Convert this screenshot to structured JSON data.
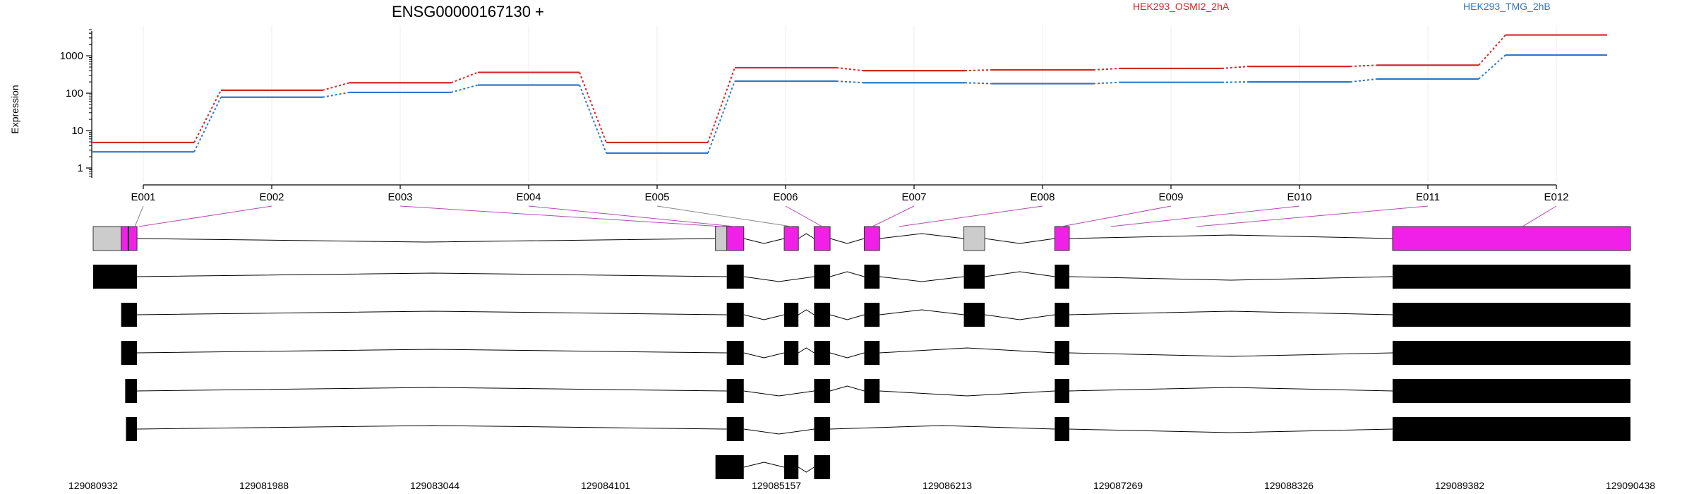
{
  "chart_data": {
    "type": "line",
    "title": "ENSG00000167130 +",
    "ylabel": "Expression",
    "yscale": "log",
    "ylim": [
      0.5,
      5000
    ],
    "y_ticks": [
      1,
      10,
      100,
      1000
    ],
    "y_tick_labels": [
      "1",
      "10",
      "100",
      "1000"
    ],
    "categories": [
      "E001",
      "E002",
      "E003",
      "E004",
      "E005",
      "E006",
      "E007",
      "E008",
      "E009",
      "E010",
      "E011",
      "E012"
    ],
    "series": [
      {
        "name": "HEK293_OSMI2_2hA",
        "color": "#d62728",
        "values": [
          4.8,
          120,
          190,
          360,
          4.8,
          480,
          400,
          420,
          460,
          520,
          560,
          3600
        ]
      },
      {
        "name": "HEK293_TMG_2hB",
        "color": "#2f79c7",
        "values": [
          2.7,
          78,
          105,
          165,
          2.5,
          210,
          190,
          180,
          195,
          200,
          240,
          1050
        ]
      }
    ],
    "grid": true,
    "legend": "top"
  },
  "gene_model": {
    "coord_start": 129080932,
    "coord_end": 129090438,
    "coordinate_labels": [
      "129080932",
      "129081988",
      "129083044",
      "129084101",
      "129085157",
      "129086213",
      "129087269",
      "129088326",
      "129089382",
      "129090438"
    ],
    "colors": {
      "exon_active": "#f020e8",
      "exon_other": "#cccccc",
      "transcript_exon": "#000000",
      "connector": "#b44ab4",
      "connector_grey": "#888888"
    },
    "summary_blocks": [
      {
        "start": 129080932,
        "end": 129081105,
        "color": "grey"
      },
      {
        "start": 129081105,
        "end": 129081203,
        "color": "magenta"
      },
      {
        "start": 129084780,
        "end": 129084850,
        "color": "grey"
      },
      {
        "start": 129084850,
        "end": 129084955,
        "color": "magenta"
      },
      {
        "start": 129085205,
        "end": 129085293,
        "color": "magenta"
      },
      {
        "start": 129085390,
        "end": 129085489,
        "color": "magenta"
      },
      {
        "start": 129085700,
        "end": 129085795,
        "color": "magenta"
      },
      {
        "start": 129086316,
        "end": 129086445,
        "color": "grey"
      },
      {
        "start": 129086878,
        "end": 129086968,
        "color": "magenta"
      },
      {
        "start": 129088967,
        "end": 129090438,
        "color": "magenta"
      }
    ],
    "transcripts": [
      [
        [
          129080932,
          129081203
        ],
        [
          129084850,
          129084955
        ],
        [
          129085390,
          129085489
        ],
        [
          129085700,
          129085795
        ],
        [
          129086316,
          129086445
        ],
        [
          129086878,
          129086968
        ],
        [
          129088967,
          129090438
        ]
      ],
      [
        [
          129081105,
          129081203
        ],
        [
          129084850,
          129084955
        ],
        [
          129085205,
          129085293
        ],
        [
          129085390,
          129085489
        ],
        [
          129085700,
          129085795
        ],
        [
          129086316,
          129086445
        ],
        [
          129086878,
          129086968
        ],
        [
          129088967,
          129090438
        ]
      ],
      [
        [
          129081105,
          129081203
        ],
        [
          129084850,
          129084955
        ],
        [
          129085205,
          129085293
        ],
        [
          129085390,
          129085489
        ],
        [
          129085700,
          129085795
        ],
        [
          129086878,
          129086968
        ],
        [
          129088967,
          129090438
        ]
      ],
      [
        [
          129081130,
          129081203
        ],
        [
          129084850,
          129084955
        ],
        [
          129085390,
          129085489
        ],
        [
          129085700,
          129085795
        ],
        [
          129086878,
          129086968
        ],
        [
          129088967,
          129090438
        ]
      ],
      [
        [
          129081135,
          129081203
        ],
        [
          129084850,
          129084955
        ],
        [
          129085390,
          129085489
        ],
        [
          129086878,
          129086968
        ],
        [
          129088967,
          129090438
        ]
      ],
      [
        [
          129084780,
          129084955
        ],
        [
          129085205,
          129085293
        ],
        [
          129085390,
          129085489
        ]
      ]
    ],
    "exon_positions": [
      129081190,
      129081215,
      129084820,
      129084900,
      129085250,
      129085440,
      129085750,
      129085915,
      129086920,
      129087225,
      129087755,
      129089770
    ],
    "connector_colors": [
      "grey",
      "magenta",
      "magenta",
      "magenta",
      "grey",
      "magenta",
      "magenta",
      "magenta",
      "magenta",
      "magenta",
      "magenta",
      "magenta"
    ]
  }
}
